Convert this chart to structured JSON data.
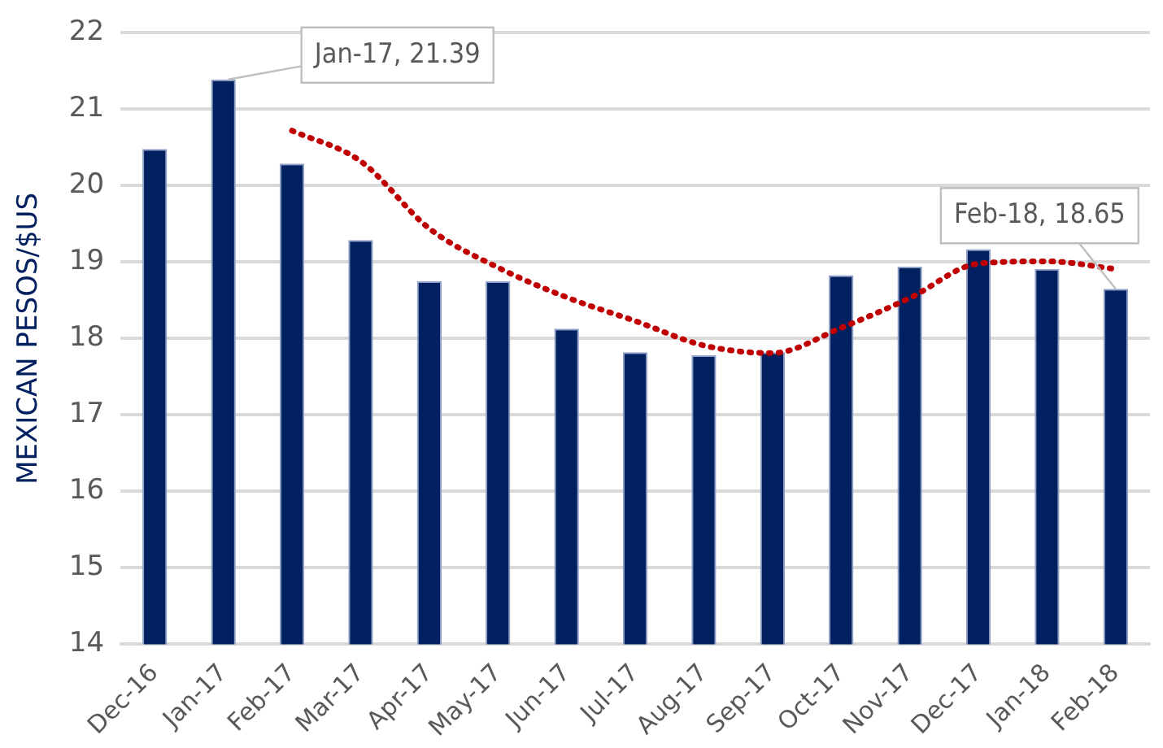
{
  "chart_data": {
    "type": "bar",
    "ylabel": "MEXICAN PESOS/$US",
    "categories": [
      "Dec-16",
      "Jan-17",
      "Feb-17",
      "Mar-17",
      "Apr-17",
      "May-17",
      "Jun-17",
      "Jul-17",
      "Aug-17",
      "Sep-17",
      "Oct-17",
      "Nov-17",
      "Dec-17",
      "Jan-18",
      "Feb-18"
    ],
    "series": [
      {
        "color": "#002060",
        "values": [
          20.48,
          21.39,
          20.29,
          19.29,
          18.75,
          18.75,
          18.13,
          17.82,
          17.78,
          17.82,
          18.83,
          18.94,
          19.17,
          18.91,
          18.65
        ]
      },
      {
        "type": "line",
        "color": "#c00000",
        "line_style": "dotted",
        "values": [
          null,
          null,
          20.72,
          20.32,
          19.44,
          18.93,
          18.54,
          18.23,
          17.91,
          17.81,
          18.14,
          18.53,
          18.98,
          19.01,
          18.91
        ]
      }
    ],
    "ylim": [
      14,
      22
    ],
    "yticks": [
      14,
      15,
      16,
      17,
      18,
      19,
      20,
      21,
      22
    ],
    "grid": "y",
    "legend": false,
    "marker": "none",
    "annotations": [
      {
        "text": "Jan-17, 21.39",
        "x": "Jan-17",
        "y": 21.39
      },
      {
        "text": "Feb-18, 18.65",
        "x": "Feb-18",
        "y": 18.65
      }
    ]
  }
}
